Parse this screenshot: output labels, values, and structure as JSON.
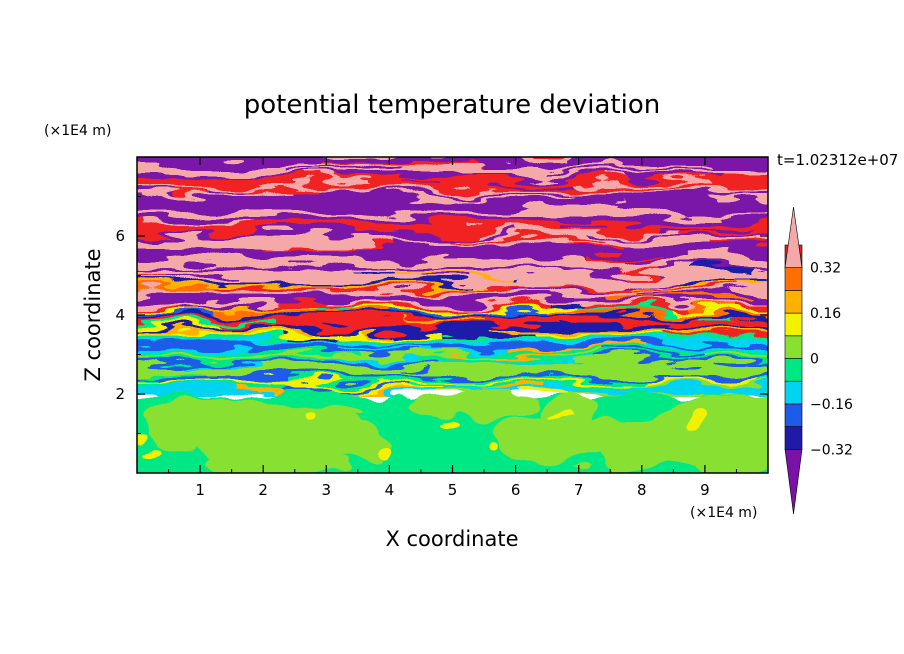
{
  "chart_data": {
    "type": "heatmap",
    "title": "potential temperature deviation",
    "xlabel": "X coordinate",
    "ylabel": "Z coordinate",
    "x_unit": "(×1E4 m)",
    "y_unit": "(×1E4 m)",
    "time_label": "t=1.02312e+07",
    "xlim": [
      0,
      10
    ],
    "ylim": [
      0,
      8
    ],
    "x_ticks": [
      "1",
      "2",
      "3",
      "4",
      "5",
      "6",
      "7",
      "8",
      "9"
    ],
    "y_ticks": [
      "2",
      "4",
      "6"
    ],
    "colorbar": {
      "levels": [
        -0.4,
        -0.32,
        -0.24,
        -0.16,
        -0.08,
        0,
        0.08,
        0.16,
        0.24,
        0.32,
        0.4
      ],
      "tick_labels": [
        "0.32",
        "0.16",
        "0",
        "−0.16",
        "−0.32"
      ],
      "tick_values": [
        0.32,
        0.16,
        0,
        -0.16,
        -0.32
      ],
      "colors": [
        "#7a12a8",
        "#1f1aa8",
        "#1d5be8",
        "#00d4f0",
        "#00e884",
        "#88e030",
        "#f2f200",
        "#ffb000",
        "#ff7000",
        "#f02020",
        "#f5a8a8"
      ]
    },
    "grid": false
  }
}
